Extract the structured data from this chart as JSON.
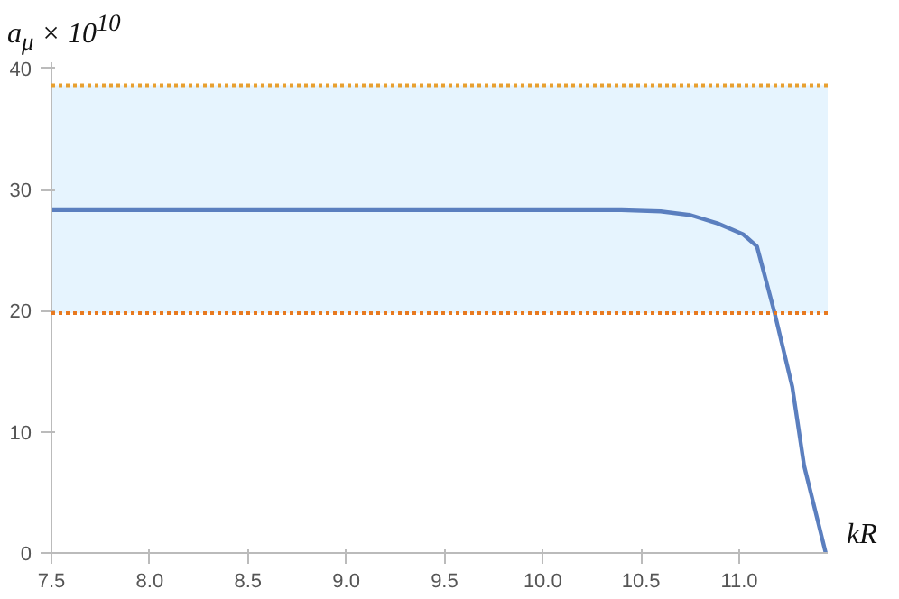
{
  "chart_data": {
    "type": "line",
    "xlabel": "kR",
    "ylabel": "a$_{μ}$ × 10$^{10}$",
    "x": [
      7.5,
      8.5,
      9.5,
      10.0,
      10.4,
      10.6,
      10.75,
      10.89,
      11.02,
      11.09,
      11.18,
      11.27,
      11.33,
      11.44
    ],
    "series": [
      {
        "color": "#5b7fbf",
        "values": [
          28.3,
          28.3,
          28.3,
          28.3,
          28.3,
          28.2,
          27.9,
          27.2,
          26.3,
          25.3,
          19.8,
          13.7,
          7.2,
          0
        ]
      }
    ],
    "xlim": [
      7.5,
      11.45
    ],
    "ylim": [
      0,
      40.5
    ],
    "xticks": [
      7.5,
      {
        "value": 8,
        "label": "8.0"
      },
      8.5,
      {
        "value": 9,
        "label": "9.0"
      },
      9.5,
      {
        "value": 10,
        "label": "10.0"
      },
      10.5,
      {
        "value": 11,
        "label": "11.0"
      }
    ],
    "yticks": [
      0,
      10,
      20,
      30,
      40
    ],
    "bands": [
      {
        "axis": "y",
        "from": 19.8,
        "to": 38.6,
        "color": "#e6f4fe"
      }
    ],
    "ref_lines": [
      {
        "axis": "y",
        "value": 38.6,
        "color": "#e8a030",
        "line_style": "dotted"
      },
      {
        "axis": "y",
        "value": 19.8,
        "color": "#e87a20",
        "line_style": "dotted"
      }
    ],
    "grid": false,
    "marker": "none",
    "line_style": "solid"
  }
}
